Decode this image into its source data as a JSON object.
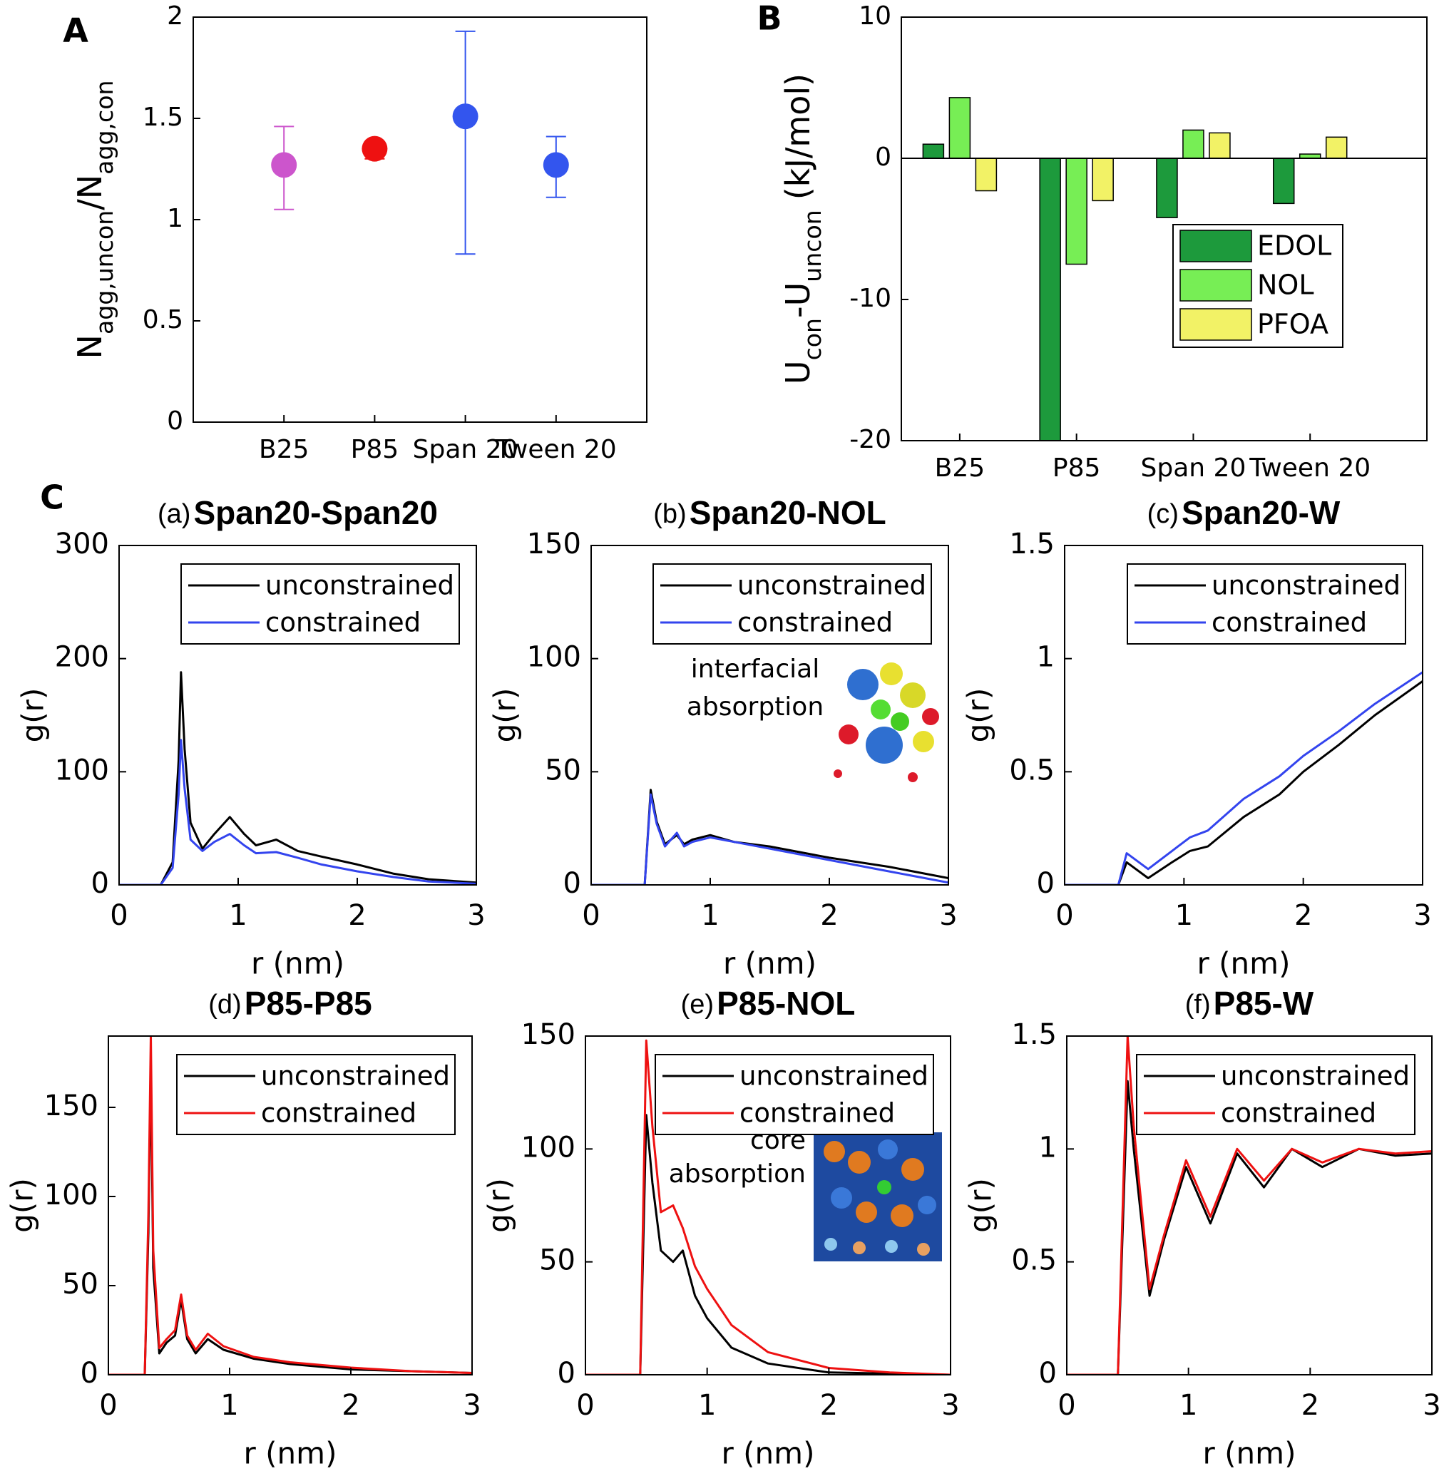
{
  "chart_data": [
    {
      "type": "scatter",
      "panel": "A",
      "categories": [
        "B25",
        "P85",
        "Span 20",
        "Tween 20"
      ],
      "values": [
        1.27,
        1.35,
        1.51,
        1.27
      ],
      "lower": [
        1.05,
        1.3,
        0.83,
        1.11
      ],
      "upper": [
        1.46,
        1.38,
        1.93,
        1.41
      ],
      "colors": [
        "#cc55cc",
        "#ee1111",
        "#3355ee",
        "#3355ee"
      ],
      "ylabel": [
        "N",
        "agg,uncon",
        "/N",
        "agg,con"
      ],
      "ylim": [
        0,
        2
      ],
      "yticks": [
        0,
        0.5,
        1,
        1.5,
        2
      ]
    },
    {
      "type": "bar",
      "panel": "B",
      "categories": [
        "B25",
        "P85",
        "Span 20",
        "Tween 20"
      ],
      "series": [
        {
          "name": "EDOL",
          "color": "#1d9a3c",
          "values": [
            1.0,
            -20.5,
            -4.2,
            -3.2
          ]
        },
        {
          "name": "NOL",
          "color": "#77ee55",
          "values": [
            4.3,
            -7.5,
            2.0,
            0.3
          ]
        },
        {
          "name": "PFOA",
          "color": "#f2f266",
          "values": [
            -2.3,
            -3.0,
            1.8,
            1.5
          ]
        }
      ],
      "ylabel": [
        "U",
        "con",
        "-U",
        "uncon",
        "(kJ/mol)"
      ],
      "ylim": [
        -20,
        10
      ],
      "yticks": [
        -20,
        -10,
        0,
        10
      ],
      "legend": "upper right"
    },
    {
      "type": "line",
      "panel": "C",
      "title_prefix": "(a)",
      "title": "Span20-Span20",
      "xlabel": "r (nm)",
      "ylabel": "g(r)",
      "x": [
        0,
        0.35,
        0.45,
        0.5,
        0.52,
        0.55,
        0.6,
        0.7,
        0.8,
        0.93,
        1.05,
        1.15,
        1.32,
        1.5,
        1.7,
        2.0,
        2.3,
        2.6,
        3.0
      ],
      "series": [
        {
          "name": "unconstrained",
          "color": "#000000",
          "values": [
            0,
            0,
            20,
            110,
            188,
            120,
            55,
            32,
            45,
            60,
            45,
            35,
            40,
            30,
            25,
            18,
            10,
            5,
            2
          ]
        },
        {
          "name": "constrained",
          "color": "#3344ee",
          "values": [
            0,
            0,
            15,
            80,
            128,
            85,
            40,
            30,
            38,
            45,
            35,
            28,
            29,
            24,
            18,
            12,
            7,
            3,
            1
          ]
        }
      ],
      "xlim": [
        0,
        3
      ],
      "xticks": [
        0,
        1,
        2,
        3
      ],
      "ylim": [
        0,
        300
      ],
      "yticks": [
        0,
        100,
        200,
        300
      ],
      "legend": "upper right"
    },
    {
      "type": "line",
      "title_prefix": "(b)",
      "title": "Span20-NOL",
      "xlabel": "r (nm)",
      "ylabel": "g(r)",
      "annotation": [
        "interfacial",
        "absorption"
      ],
      "x": [
        0,
        0.45,
        0.5,
        0.55,
        0.62,
        0.72,
        0.78,
        0.85,
        1.0,
        1.2,
        1.5,
        2.0,
        2.5,
        3.0
      ],
      "series": [
        {
          "name": "unconstrained",
          "color": "#000000",
          "values": [
            0,
            0,
            42,
            28,
            18,
            22,
            18,
            20,
            22,
            19,
            17,
            12,
            8,
            3
          ]
        },
        {
          "name": "constrained",
          "color": "#3344ee",
          "values": [
            0,
            0,
            40,
            27,
            17,
            23,
            17,
            19,
            21,
            19,
            16,
            11,
            6,
            1
          ]
        }
      ],
      "xlim": [
        0,
        3
      ],
      "xticks": [
        0,
        1,
        2,
        3
      ],
      "ylim": [
        0,
        150
      ],
      "yticks": [
        0,
        50,
        100,
        150
      ],
      "legend": "upper right"
    },
    {
      "type": "line",
      "title_prefix": "(c)",
      "title": "Span20-W",
      "xlabel": "r (nm)",
      "ylabel": "g(r)",
      "x": [
        0,
        0.45,
        0.52,
        0.7,
        0.9,
        1.05,
        1.2,
        1.5,
        1.8,
        2.0,
        2.3,
        2.6,
        3.0
      ],
      "series": [
        {
          "name": "unconstrained",
          "color": "#000000",
          "values": [
            0,
            0,
            0.1,
            0.03,
            0.1,
            0.15,
            0.17,
            0.3,
            0.4,
            0.5,
            0.62,
            0.75,
            0.9
          ]
        },
        {
          "name": "constrained",
          "color": "#3344ee",
          "values": [
            0,
            0,
            0.14,
            0.07,
            0.15,
            0.21,
            0.24,
            0.38,
            0.48,
            0.57,
            0.68,
            0.8,
            0.94
          ]
        }
      ],
      "xlim": [
        0,
        3
      ],
      "xticks": [
        0,
        1,
        2,
        3
      ],
      "ylim": [
        0,
        1.5
      ],
      "yticks": [
        0,
        0.5,
        1,
        1.5
      ],
      "legend": "upper right"
    },
    {
      "type": "line",
      "title_prefix": "(d)",
      "title": "P85-P85",
      "xlabel": "r (nm)",
      "ylabel": "g(r)",
      "x": [
        0,
        0.3,
        0.33,
        0.35,
        0.37,
        0.42,
        0.48,
        0.55,
        0.6,
        0.65,
        0.72,
        0.82,
        0.95,
        1.2,
        1.5,
        2.0,
        2.5,
        3.0
      ],
      "series": [
        {
          "name": "unconstrained",
          "color": "#000000",
          "values": [
            0,
            0,
            80,
            175,
            60,
            12,
            18,
            22,
            42,
            20,
            12,
            20,
            14,
            9,
            6,
            3,
            2,
            1
          ]
        },
        {
          "name": "constrained",
          "color": "#ee1111",
          "values": [
            0,
            0,
            90,
            190,
            70,
            15,
            20,
            25,
            45,
            22,
            14,
            23,
            16,
            10,
            7,
            4,
            2,
            1
          ]
        }
      ],
      "xlim": [
        0,
        3
      ],
      "xticks": [
        0,
        1,
        2,
        3
      ],
      "ylim": [
        0,
        190
      ],
      "yticks": [
        0,
        50,
        100,
        150
      ],
      "legend": "upper right"
    },
    {
      "type": "line",
      "title_prefix": "(e)",
      "title": "P85-NOL",
      "xlabel": "r (nm)",
      "ylabel": "g(r)",
      "annotation": [
        "core",
        "absorption"
      ],
      "x": [
        0,
        0.45,
        0.5,
        0.55,
        0.62,
        0.72,
        0.8,
        0.9,
        1.0,
        1.2,
        1.5,
        2.0,
        2.5,
        3.0
      ],
      "series": [
        {
          "name": "unconstrained",
          "color": "#000000",
          "values": [
            0,
            0,
            115,
            85,
            55,
            50,
            55,
            35,
            25,
            12,
            5,
            1,
            0.5,
            0
          ]
        },
        {
          "name": "constrained",
          "color": "#ee1111",
          "values": [
            0,
            0,
            148,
            110,
            72,
            75,
            65,
            48,
            38,
            22,
            10,
            3,
            1,
            0
          ]
        }
      ],
      "xlim": [
        0,
        3
      ],
      "xticks": [
        0,
        1,
        2,
        3
      ],
      "ylim": [
        0,
        150
      ],
      "yticks": [
        0,
        50,
        100,
        150
      ],
      "legend": "upper right"
    },
    {
      "type": "line",
      "title_prefix": "(f)",
      "title": "P85-W",
      "xlabel": "r (nm)",
      "ylabel": "g(r)",
      "x": [
        0,
        0.42,
        0.5,
        0.55,
        0.68,
        0.8,
        0.98,
        1.18,
        1.4,
        1.62,
        1.85,
        2.1,
        2.4,
        2.7,
        3.0
      ],
      "series": [
        {
          "name": "unconstrained",
          "color": "#000000",
          "values": [
            0,
            0,
            1.3,
            1.0,
            0.35,
            0.6,
            0.92,
            0.67,
            0.98,
            0.83,
            1.0,
            0.92,
            1.0,
            0.97,
            0.98
          ]
        },
        {
          "name": "constrained",
          "color": "#ee1111",
          "values": [
            0,
            0,
            1.5,
            1.1,
            0.38,
            0.62,
            0.95,
            0.7,
            1.0,
            0.86,
            1.0,
            0.94,
            1.0,
            0.98,
            0.99
          ]
        }
      ],
      "xlim": [
        0,
        3
      ],
      "xticks": [
        0,
        1,
        2,
        3
      ],
      "ylim": [
        0,
        1.5
      ],
      "yticks": [
        0,
        0.5,
        1,
        1.5
      ],
      "legend": "upper right"
    }
  ]
}
